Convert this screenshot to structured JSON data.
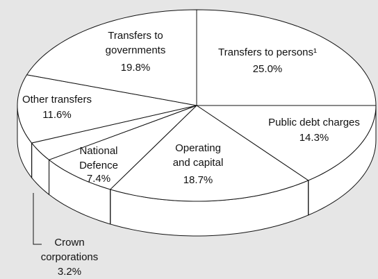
{
  "chart_data": {
    "type": "pie3d",
    "categories": [
      "Transfers to persons¹",
      "Public debt charges",
      "Operating and capital",
      "National Defence",
      "Crown corporations",
      "Other transfers",
      "Transfers to governments"
    ],
    "values": [
      25.0,
      14.3,
      18.7,
      7.4,
      3.2,
      11.6,
      19.8
    ],
    "value_labels": [
      "25.0%",
      "14.3%",
      "18.7%",
      "7.4%",
      "3.2%",
      "11.6%",
      "19.8%"
    ],
    "color": "#ffffff"
  }
}
